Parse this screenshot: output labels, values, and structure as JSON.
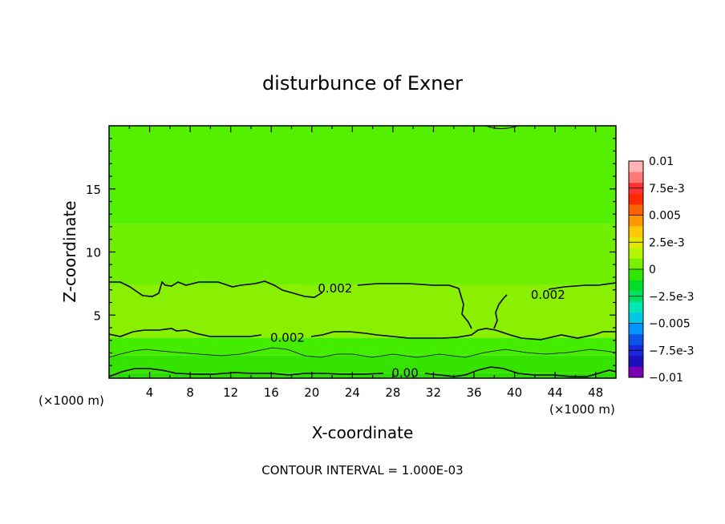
{
  "chart_data": {
    "type": "heatmap",
    "title": "disturbunce of Exner",
    "xlabel": "X-coordinate",
    "ylabel": "Z-coordinate",
    "x_unit": "(×1000 m)",
    "x_unit_right": "(×1000 m)",
    "footer": "CONTOUR INTERVAL = 1.000E-03",
    "xlim": [
      0,
      50
    ],
    "ylim": [
      0,
      20
    ],
    "x_ticks": [
      4,
      8,
      12,
      16,
      20,
      24,
      28,
      32,
      36,
      40,
      44,
      48
    ],
    "y_ticks": [
      5,
      10,
      15
    ],
    "colorbar": {
      "range": [
        -0.01,
        0.01
      ],
      "labels": [
        {
          "value": 0.01,
          "text": "0.01"
        },
        {
          "value": 0.0075,
          "text": "7.5e-3"
        },
        {
          "value": 0.005,
          "text": "0.005"
        },
        {
          "value": 0.0025,
          "text": "2.5e-3"
        },
        {
          "value": 0,
          "text": "0"
        },
        {
          "value": -0.0025,
          "text": "−2.5e-3"
        },
        {
          "value": -0.005,
          "text": "−0.005"
        },
        {
          "value": -0.0075,
          "text": "−7.5e-3"
        },
        {
          "value": -0.01,
          "text": "−0.01"
        }
      ],
      "colors": [
        "#7a00b4",
        "#1e0fbe",
        "#1a28dc",
        "#0a55e6",
        "#0096ff",
        "#00c8e6",
        "#00e6b4",
        "#00e164",
        "#00dc28",
        "#32e600",
        "#78f000",
        "#b4f500",
        "#e6e600",
        "#ffc800",
        "#ff9600",
        "#ff6400",
        "#ff2800",
        "#ff3232",
        "#ff7878",
        "#ffb4b4"
      ]
    },
    "bands": [
      {
        "z": [
          0,
          0.4
        ],
        "color": "#28dc00"
      },
      {
        "z": [
          0.4,
          1.8
        ],
        "color": "#34e400"
      },
      {
        "z": [
          1.8,
          3.2
        ],
        "color": "#44ec00"
      },
      {
        "z": [
          3.2,
          7.4
        ],
        "color": "#88f000"
      },
      {
        "z": [
          7.4,
          12.2
        ],
        "color": "#6ef000"
      },
      {
        "z": [
          12.2,
          20
        ],
        "color": "#55f000"
      }
    ],
    "contours": [
      {
        "label": "0.002",
        "label_x": 22.3,
        "label_z": 7.1
      },
      {
        "label": "0.002",
        "label_x": 43.3,
        "label_z": 6.6
      },
      {
        "label": "0.002",
        "label_x": 17.6,
        "label_z": 3.2
      },
      {
        "label": "0.00",
        "label_x": 29.2,
        "label_z": 0.4
      }
    ]
  }
}
